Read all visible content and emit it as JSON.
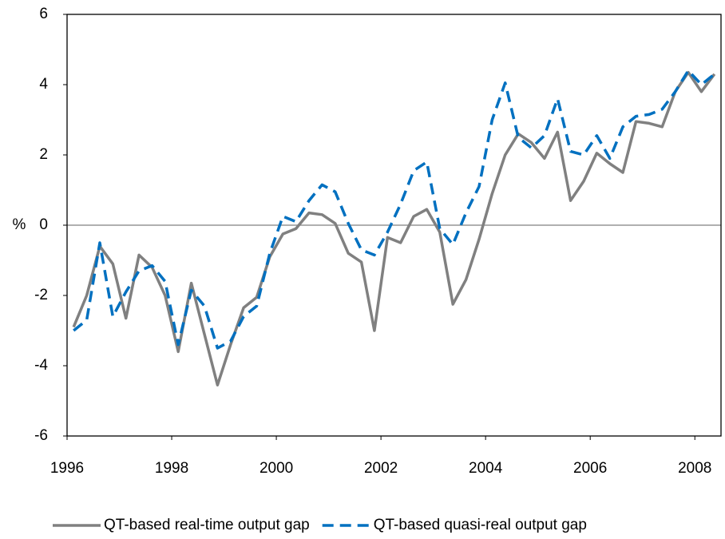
{
  "chart_data": {
    "type": "line",
    "ylabel": "%",
    "x": [
      1996.125,
      1996.375,
      1996.625,
      1996.875,
      1997.125,
      1997.375,
      1997.625,
      1997.875,
      1998.125,
      1998.375,
      1998.625,
      1998.875,
      1999.125,
      1999.375,
      1999.625,
      1999.875,
      2000.125,
      2000.375,
      2000.625,
      2000.875,
      2001.125,
      2001.375,
      2001.625,
      2001.875,
      2002.125,
      2002.375,
      2002.625,
      2002.875,
      2003.125,
      2003.375,
      2003.625,
      2003.875,
      2004.125,
      2004.375,
      2004.625,
      2004.875,
      2005.125,
      2005.375,
      2005.625,
      2005.875,
      2006.125,
      2006.375,
      2006.625,
      2006.875,
      2007.125,
      2007.375,
      2007.625,
      2007.875,
      2008.125,
      2008.375
    ],
    "series": [
      {
        "name": "QT-based real-time output gap",
        "color": "#808080",
        "dash": false,
        "values": [
          -2.9,
          -2.0,
          -0.6,
          -1.1,
          -2.65,
          -0.85,
          -1.2,
          -2.0,
          -3.6,
          -1.65,
          -3.1,
          -4.55,
          -3.4,
          -2.35,
          -2.05,
          -0.9,
          -0.25,
          -0.1,
          0.35,
          0.3,
          0.05,
          -0.8,
          -1.05,
          -3.0,
          -0.35,
          -0.5,
          0.25,
          0.45,
          -0.2,
          -2.25,
          -1.55,
          -0.4,
          0.9,
          2.0,
          2.6,
          2.35,
          1.9,
          2.65,
          0.7,
          1.25,
          2.05,
          1.75,
          1.5,
          2.95,
          2.9,
          2.8,
          3.8,
          4.35,
          3.8,
          4.3
        ]
      },
      {
        "name": "QT-based quasi-real output gap",
        "color": "#0070c0",
        "dash": true,
        "values": [
          -3.0,
          -2.7,
          -0.5,
          -2.6,
          -1.9,
          -1.3,
          -1.15,
          -1.6,
          -3.4,
          -1.85,
          -2.3,
          -3.5,
          -3.3,
          -2.6,
          -2.3,
          -0.8,
          0.25,
          0.1,
          0.7,
          1.15,
          0.95,
          0.05,
          -0.7,
          -0.85,
          -0.2,
          0.6,
          1.55,
          1.8,
          -0.1,
          -0.55,
          0.35,
          1.1,
          3.0,
          4.05,
          2.5,
          2.2,
          2.55,
          3.6,
          2.1,
          2.0,
          2.55,
          1.9,
          2.8,
          3.1,
          3.15,
          3.3,
          3.8,
          4.4,
          4.0,
          4.3
        ]
      }
    ],
    "xlim": [
      1996,
      2008.5
    ],
    "xticks": [
      1996,
      1998,
      2000,
      2002,
      2004,
      2006,
      2008
    ],
    "ylim": [
      -6,
      6
    ],
    "yticks": [
      -6,
      -4,
      -2,
      0,
      2,
      4,
      6
    ],
    "zero_line": true,
    "grid": false,
    "legend": "bottom"
  }
}
